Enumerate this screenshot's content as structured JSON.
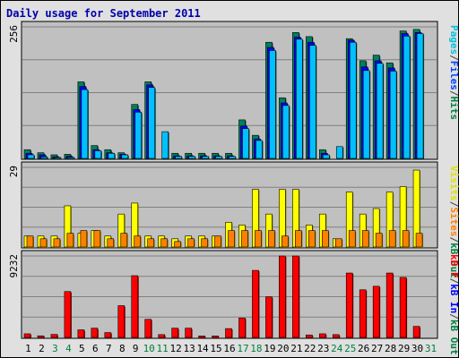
{
  "chart_data": {
    "type": "bar",
    "title": "Daily usage for September 2011",
    "x": [
      "1",
      "2",
      "3",
      "4",
      "5",
      "6",
      "7",
      "8",
      "9",
      "10",
      "11",
      "12",
      "13",
      "14",
      "15",
      "16",
      "17",
      "18",
      "19",
      "20",
      "21",
      "22",
      "23",
      "24",
      "25",
      "26",
      "27",
      "28",
      "29",
      "30",
      "31"
    ],
    "weekend_days": [
      "3",
      "4",
      "10",
      "11",
      "17",
      "18",
      "24",
      "25",
      "31"
    ],
    "panels": [
      {
        "ymax_label": "256",
        "ymax": 256,
        "legend": [
          {
            "text": "Pages",
            "color": "#00c0e0"
          },
          {
            "text": "/",
            "color": "#404040"
          },
          {
            "text": "Files",
            "color": "#0040ff"
          },
          {
            "text": "/",
            "color": "#404040"
          },
          {
            "text": "Hits",
            "color": "#008040"
          }
        ],
        "series": [
          {
            "name": "Hits",
            "color": "#00805c",
            "values": [
              17,
              11,
              7,
              8,
              149,
              25,
              17,
              11,
              105,
              149,
              0,
              10,
              10,
              10,
              10,
              10,
              75,
              45,
              226,
              118,
              245,
              237,
              17,
              0,
              233,
              190,
              201,
              186,
              248,
              251,
              0
            ]
          },
          {
            "name": "Files",
            "color": "#0000ff",
            "values": [
              10,
              7,
              3,
              4,
              140,
              17,
              11,
              8,
              95,
              143,
              0,
              5,
              5,
              5,
              5,
              5,
              63,
              38,
              216,
              108,
              236,
              226,
              10,
              0,
              230,
              178,
              190,
              176,
              243,
              245,
              0
            ]
          },
          {
            "name": "Pages",
            "color": "#00c0ff",
            "values": [
              7,
              3,
              2,
              2,
              134,
              15,
              10,
              7,
              90,
              138,
              52,
              4,
              4,
              4,
              4,
              4,
              58,
              35,
              210,
              103,
              232,
              220,
              7,
              23,
              226,
              171,
              185,
              170,
              238,
              243,
              0
            ]
          }
        ]
      },
      {
        "ymax_label": "29",
        "ymax": 29,
        "legend": [
          {
            "text": "Visits",
            "color": "#e0e000"
          },
          {
            "text": "/",
            "color": "#404040"
          },
          {
            "text": "Sites",
            "color": "#ff8000"
          },
          {
            "text": "/",
            "color": "#404040"
          },
          {
            "text": "kB Out",
            "color": "#008040"
          }
        ],
        "series": [
          {
            "name": "Visits",
            "color": "#ffff00",
            "values": [
              4,
              4,
              4,
              15,
              5,
              6,
              4,
              12,
              16,
              4,
              4,
              3,
              4,
              4,
              4,
              9,
              8,
              21,
              12,
              21,
              21,
              8,
              12,
              3,
              20,
              12,
              14,
              20,
              22,
              28,
              0
            ]
          },
          {
            "name": "Sites",
            "color": "#ff8000",
            "values": [
              4,
              3,
              3,
              5,
              6,
              6,
              3,
              5,
              4,
              3,
              3,
              2,
              3,
              3,
              4,
              6,
              6,
              6,
              6,
              4,
              6,
              6,
              6,
              3,
              6,
              6,
              5,
              6,
              6,
              5,
              0
            ]
          }
        ]
      },
      {
        "ymax_label": "9232",
        "ymax": 9232,
        "legend": [
          {
            "text": "kB F",
            "color": "#ff0000"
          },
          {
            "text": "/",
            "color": "#404040"
          },
          {
            "text": "kB In",
            "color": "#0000ff"
          },
          {
            "text": "/",
            "color": "#404040"
          },
          {
            "text": "kB Out",
            "color": "#008040"
          }
        ],
        "series": [
          {
            "name": "kB F",
            "color": "#ff0000",
            "values": [
              410,
              180,
              340,
              5200,
              860,
              1050,
              550,
              3600,
              7000,
              2050,
              320,
              1050,
              1050,
              160,
              160,
              1000,
              2200,
              7600,
              4600,
              9232,
              9232,
              280,
              410,
              320,
              7300,
              5400,
              5800,
              7300,
              6800,
              1250,
              0
            ]
          }
        ]
      }
    ]
  }
}
